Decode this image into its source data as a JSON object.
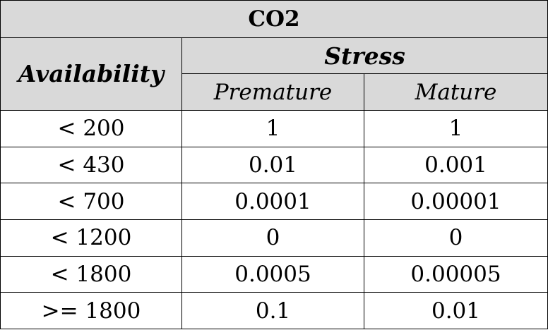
{
  "table": {
    "title": "CO2",
    "row_header": "Availability",
    "group_header": "Stress",
    "columns": [
      "Premature",
      "Mature"
    ],
    "rows": [
      {
        "availability": "< 200",
        "premature": "1",
        "mature": "1"
      },
      {
        "availability": "< 430",
        "premature": "0.01",
        "mature": "0.001"
      },
      {
        "availability": "< 700",
        "premature": "0.0001",
        "mature": "0.00001"
      },
      {
        "availability": "< 1200",
        "premature": "0",
        "mature": "0"
      },
      {
        "availability": "< 1800",
        "premature": "0.0005",
        "mature": "0.00005"
      },
      {
        "availability": ">= 1800",
        "premature": "0.1",
        "mature": "0.01"
      }
    ],
    "header_fill": "#d9d9d9"
  }
}
